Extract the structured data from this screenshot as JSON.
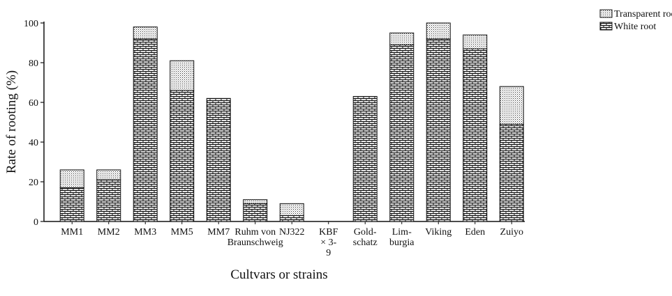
{
  "chart_data": {
    "type": "stacked_bar",
    "y_label": "Rate of rooting (%)",
    "x_label": "Cultvars or strains",
    "categories": [
      "MM1",
      "MM2",
      "MM3",
      "MM5",
      "MM7",
      "Ruhm von Braunschweig",
      "NJ322",
      "KBF × 3-9",
      "Gold- schatz",
      "Lim- burgia",
      "Viking",
      "Eden",
      "Zuiyo"
    ],
    "series": [
      {
        "name": "White root",
        "color": "#111111",
        "pattern": "bricks",
        "values": [
          17,
          21,
          92,
          66,
          62,
          9,
          3,
          0,
          63,
          89,
          92,
          87,
          49
        ]
      },
      {
        "name": "Transparent root",
        "color": "#111111",
        "pattern": "dots",
        "values": [
          9,
          5,
          6,
          15,
          0,
          2,
          6,
          0,
          0,
          6,
          8,
          7,
          19
        ]
      }
    ],
    "ylim": [
      0,
      100
    ],
    "yticks": [
      0,
      20,
      40,
      60,
      80,
      100
    ],
    "legend": "top-right",
    "legend_order": [
      1,
      0
    ]
  }
}
